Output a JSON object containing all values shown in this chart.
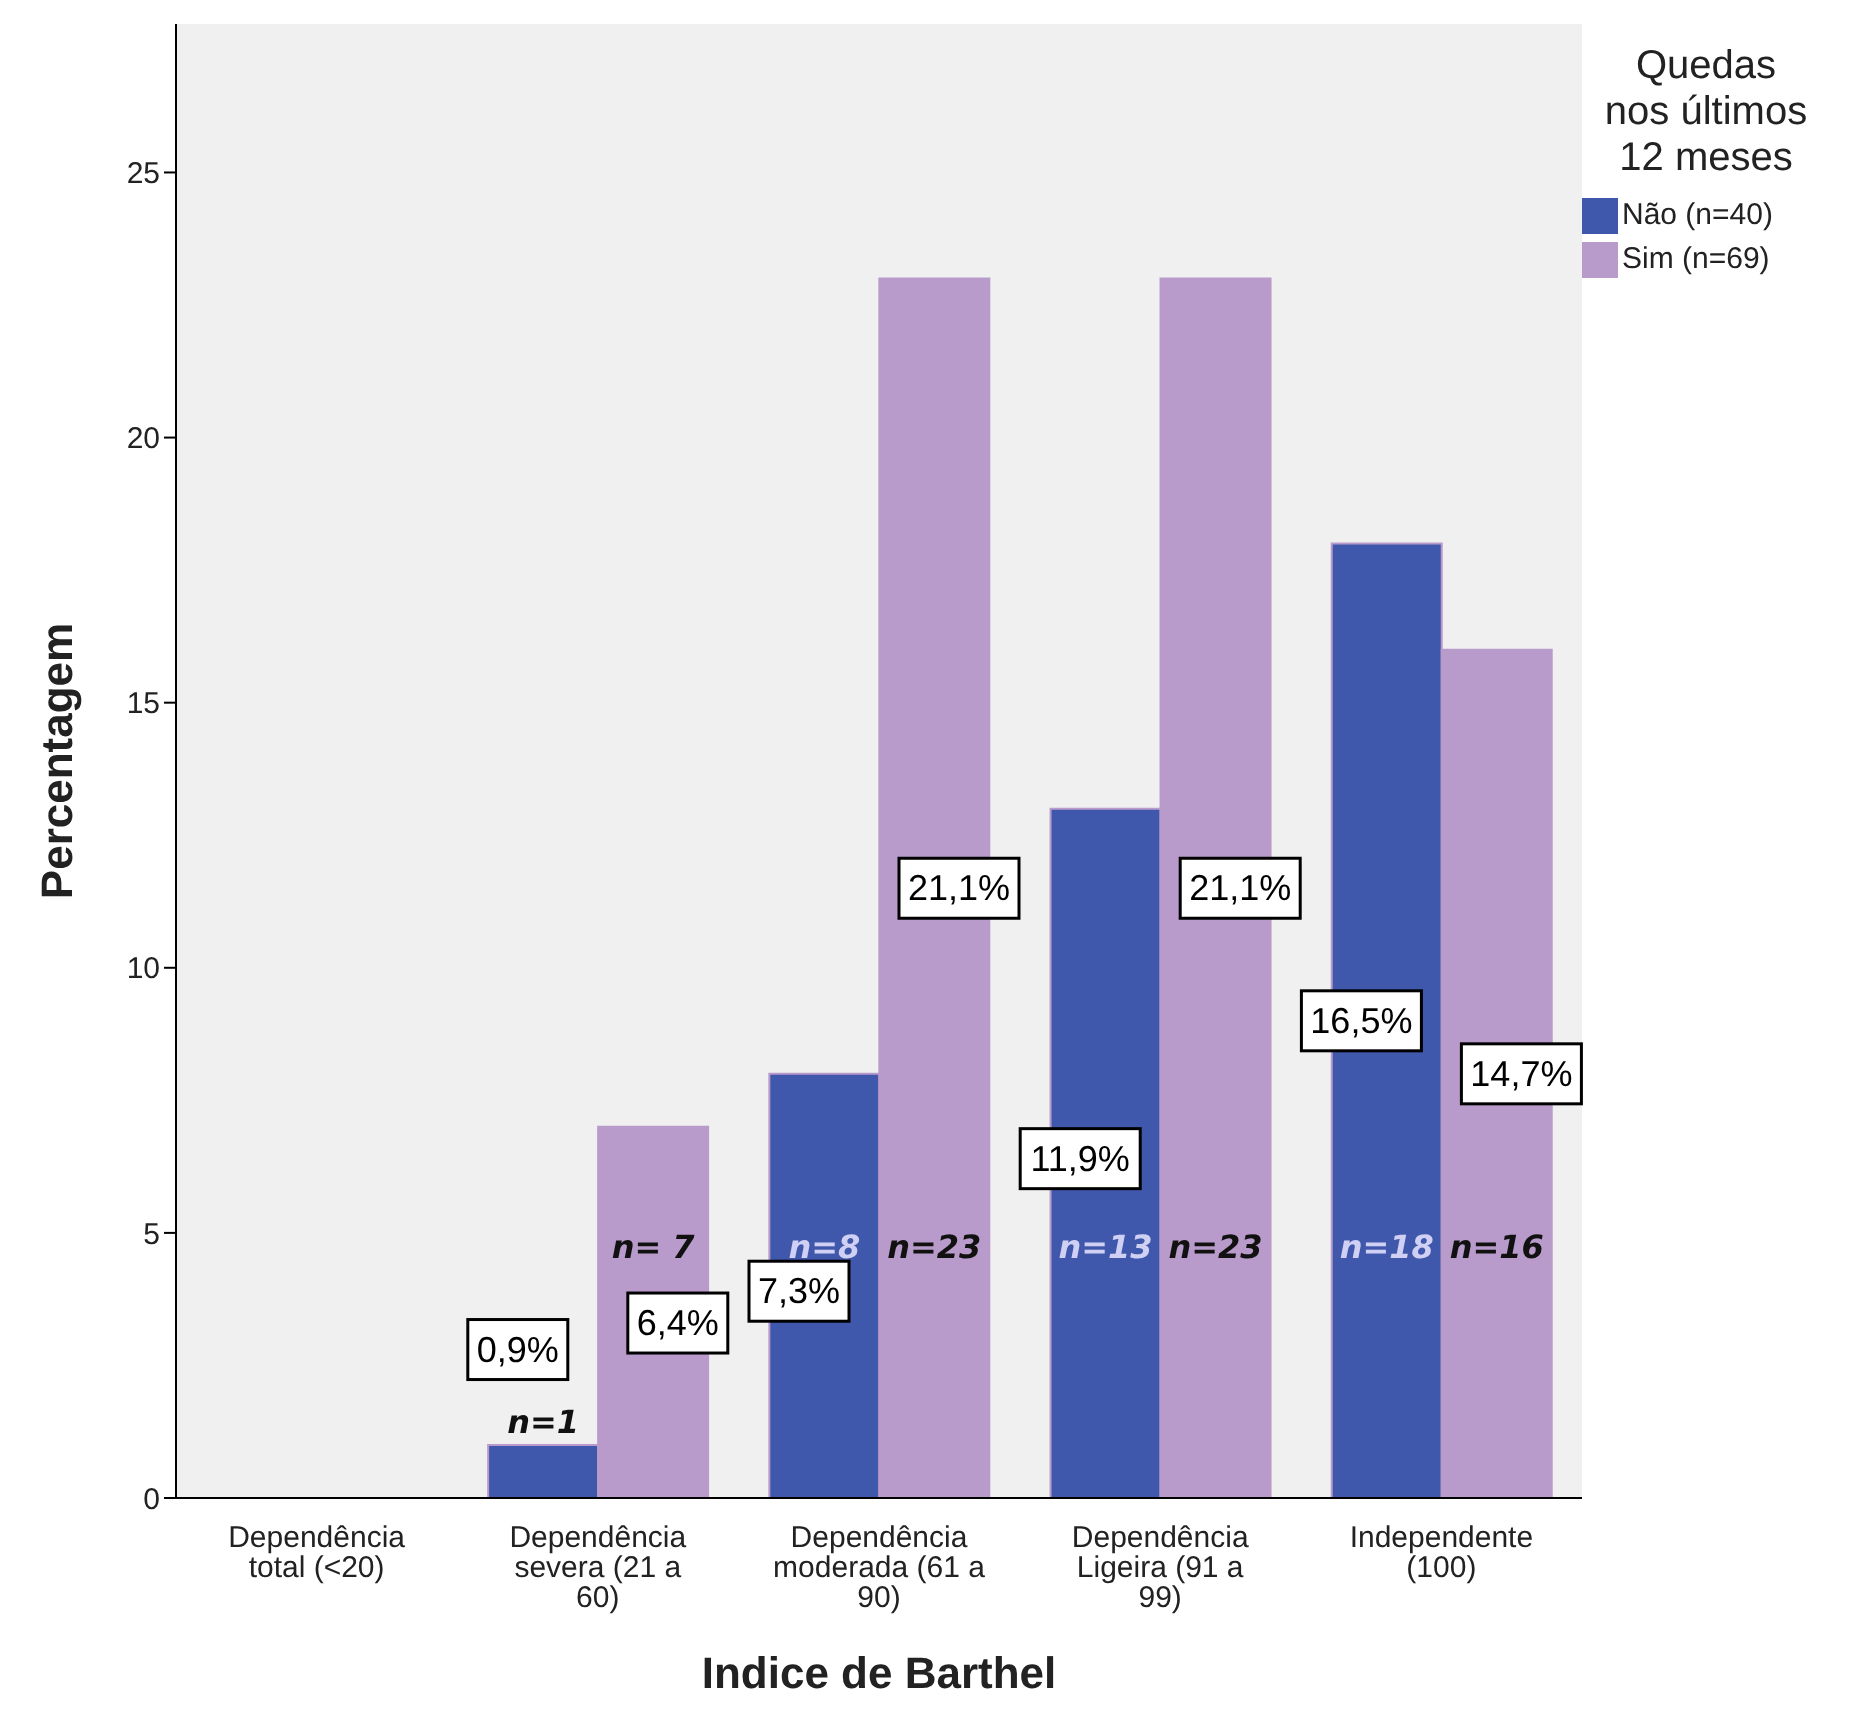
{
  "chart_data": {
    "type": "bar",
    "xlabel": "Indice de Barthel",
    "ylabel": "Percentagem",
    "legend_title": "Quedas nos últimos 12 meses",
    "categories": [
      "Dependência total (<20)",
      "Dependência severa (21 a 60)",
      "Dependência moderada (61 a 90)",
      "Dependência Ligeira (91 a 99)",
      "Independente (100)"
    ],
    "series": [
      {
        "name": "Não (n=40)",
        "color": "#3f58ab",
        "values": [
          0,
          1,
          8,
          13,
          18
        ],
        "value_labels": [
          null,
          "n=1",
          "n=8",
          "n=13",
          "n=18"
        ]
      },
      {
        "name": "Sim (n=69)",
        "color": "#b89bcb",
        "values": [
          0,
          7,
          23,
          23,
          16
        ],
        "value_labels": [
          null,
          "n= 7",
          "n=23",
          "n=23",
          "n=16"
        ]
      }
    ],
    "annotations": [
      {
        "text": "0,9%",
        "x": "Dependência severa (21 a 60)",
        "y": 2.8
      },
      {
        "text": "6,4%",
        "x": "Dependência severa (21 a 60)",
        "y": 3.3
      },
      {
        "text": "7,3%",
        "x": "Dependência moderada (61 a 90)",
        "y": 3.9
      },
      {
        "text": "21,1%",
        "x": "Dependência moderada (61 a 90)",
        "y": 11.5
      },
      {
        "text": "11,9%",
        "x": "Dependência Ligeira (91 a 99)",
        "y": 6.4
      },
      {
        "text": "21,1%",
        "x": "Dependência Ligeira (91 a 99)",
        "y": 11.5
      },
      {
        "text": "16,5%",
        "x": "Independente (100)",
        "y": 9.0
      },
      {
        "text": "14,7%",
        "x": "Independente (100)",
        "y": 8.0
      }
    ],
    "ylim": [
      0,
      27.8
    ],
    "yticks": [
      0,
      5,
      10,
      15,
      20,
      25
    ],
    "grid": false,
    "legend": "top right"
  }
}
